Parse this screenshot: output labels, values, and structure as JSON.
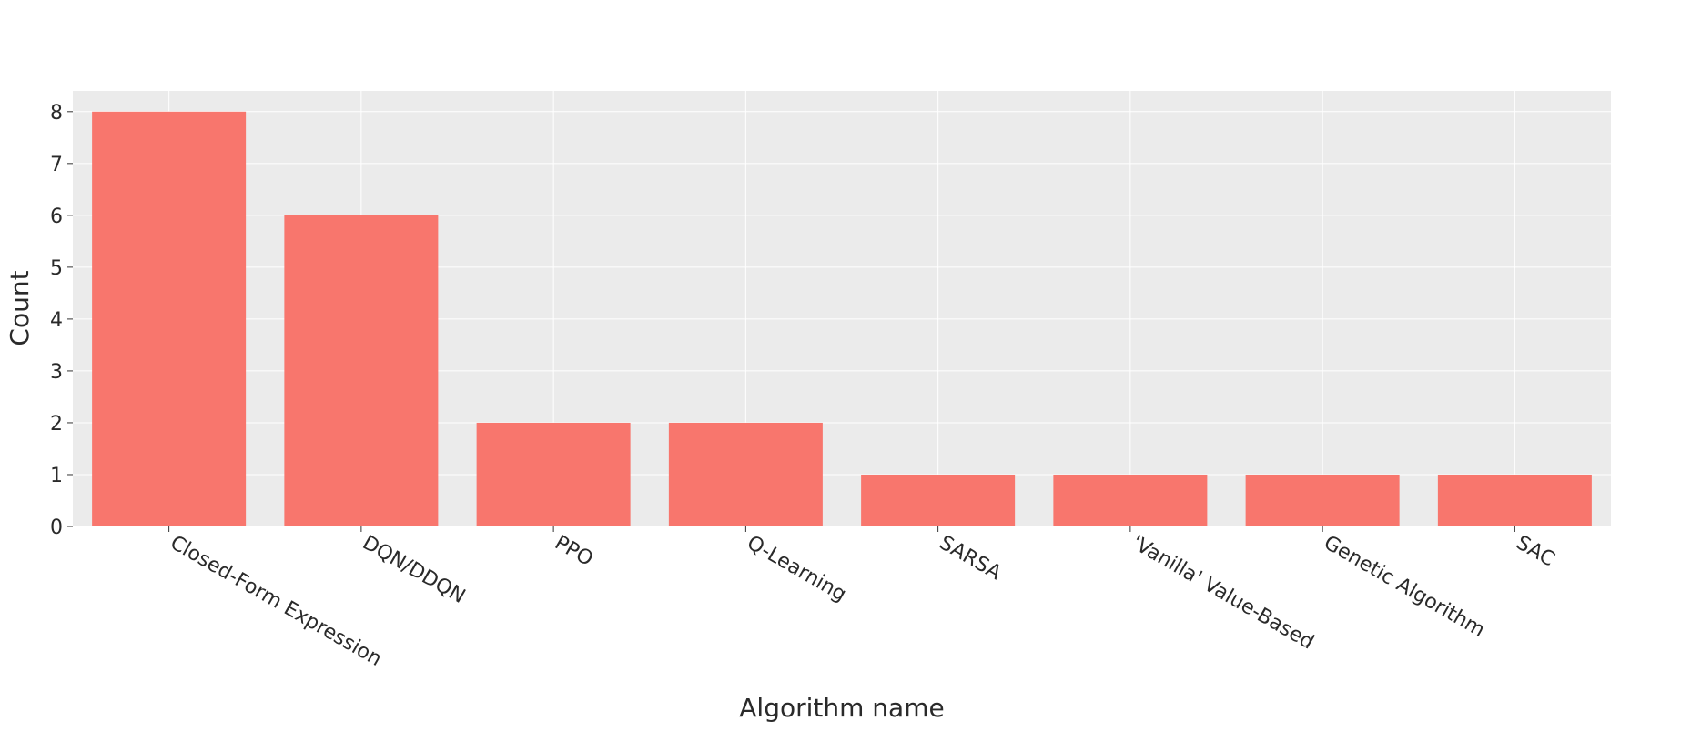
{
  "chart_data": {
    "type": "bar",
    "title": "",
    "xlabel": "Algorithm name",
    "ylabel": "Count",
    "categories": [
      "Closed-Form Expression",
      "DQN/DDQN",
      "PPO",
      "Q-Learning",
      "SARSA",
      "'Vanilla' Value-Based",
      "Genetic Algorithm",
      "SAC"
    ],
    "values": [
      8,
      6,
      2,
      2,
      1,
      1,
      1,
      1
    ],
    "ylim": [
      0,
      8.4
    ],
    "yticks": [
      0,
      1,
      2,
      3,
      4,
      5,
      6,
      7,
      8
    ],
    "grid": true,
    "legend": "none"
  },
  "colors": {
    "bar": "#F8766D",
    "panel": "#EBEBEB",
    "grid": "#FFFFFF",
    "text": "#2A2A2A"
  }
}
